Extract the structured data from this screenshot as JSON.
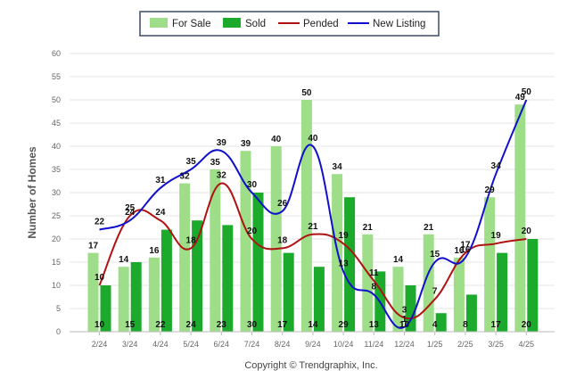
{
  "chart_data": {
    "type": "bar",
    "ylabel": "Number of Homes",
    "xlabel": "",
    "ylim": [
      0,
      60
    ],
    "yticks": [
      0,
      5,
      10,
      15,
      20,
      25,
      30,
      35,
      40,
      45,
      50,
      55,
      60
    ],
    "grid": true,
    "legend_position": "top-center",
    "categories": [
      "2/24",
      "3/24",
      "4/24",
      "5/24",
      "6/24",
      "7/24",
      "8/24",
      "9/24",
      "10/24",
      "11/24",
      "12/24",
      "1/25",
      "2/25",
      "3/25",
      "4/25"
    ],
    "series": [
      {
        "name": "For Sale",
        "type": "bar",
        "color": "#9EDE88",
        "values": [
          17,
          14,
          16,
          32,
          35,
          39,
          40,
          50,
          34,
          21,
          14,
          21,
          16,
          29,
          49
        ]
      },
      {
        "name": "Sold",
        "type": "bar",
        "color": "#1BAA2C",
        "values": [
          10,
          15,
          22,
          24,
          23,
          30,
          17,
          14,
          29,
          13,
          10,
          4,
          8,
          17,
          20
        ]
      },
      {
        "name": "Pended",
        "type": "line",
        "color": "#B01212",
        "values": [
          10,
          25,
          24,
          18,
          32,
          20,
          18,
          21,
          19,
          11,
          3,
          7,
          17,
          19,
          20
        ]
      },
      {
        "name": "New Listing",
        "type": "line",
        "color": "#1010CC",
        "values": [
          22,
          24,
          31,
          35,
          39,
          30,
          26,
          40,
          13,
          8,
          1,
          15,
          16,
          34,
          50
        ]
      }
    ]
  },
  "copyright": "Copyright © Trendgraphix, Inc."
}
